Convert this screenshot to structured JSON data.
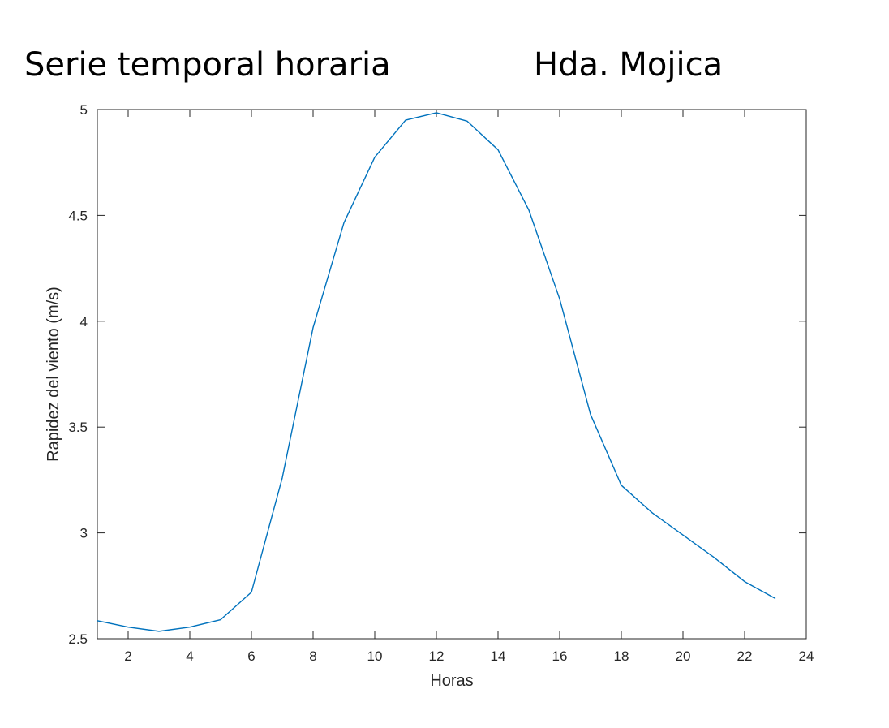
{
  "header": {
    "left_title": "Serie temporal horaria",
    "right_title": "Hda. Mojica"
  },
  "chart_data": {
    "type": "line",
    "xlabel": "Horas",
    "ylabel": "Rapidez del viento (m/s)",
    "xlim": [
      1,
      24
    ],
    "ylim": [
      2.5,
      5
    ],
    "xticks": [
      2,
      4,
      6,
      8,
      10,
      12,
      14,
      16,
      18,
      20,
      22,
      24
    ],
    "yticks": [
      2.5,
      3,
      3.5,
      4,
      4.5,
      5
    ],
    "xtick_labels": [
      "2",
      "4",
      "6",
      "8",
      "10",
      "12",
      "14",
      "16",
      "18",
      "20",
      "22",
      "24"
    ],
    "ytick_labels": [
      "2.5",
      "3",
      "3.5",
      "4",
      "4.5",
      "5"
    ],
    "grid": false,
    "series": [
      {
        "color": "#0072bd",
        "x": [
          1,
          2,
          3,
          4,
          5,
          6,
          7,
          8,
          9,
          10,
          11,
          12,
          13,
          14,
          15,
          16,
          17,
          18,
          19,
          20,
          21,
          22,
          23
        ],
        "y": [
          2.585,
          2.555,
          2.535,
          2.555,
          2.59,
          2.72,
          3.26,
          3.97,
          4.465,
          4.775,
          4.95,
          4.985,
          4.945,
          4.81,
          4.525,
          4.105,
          3.56,
          3.225,
          3.095,
          2.99,
          2.885,
          2.77,
          2.69
        ]
      }
    ]
  }
}
